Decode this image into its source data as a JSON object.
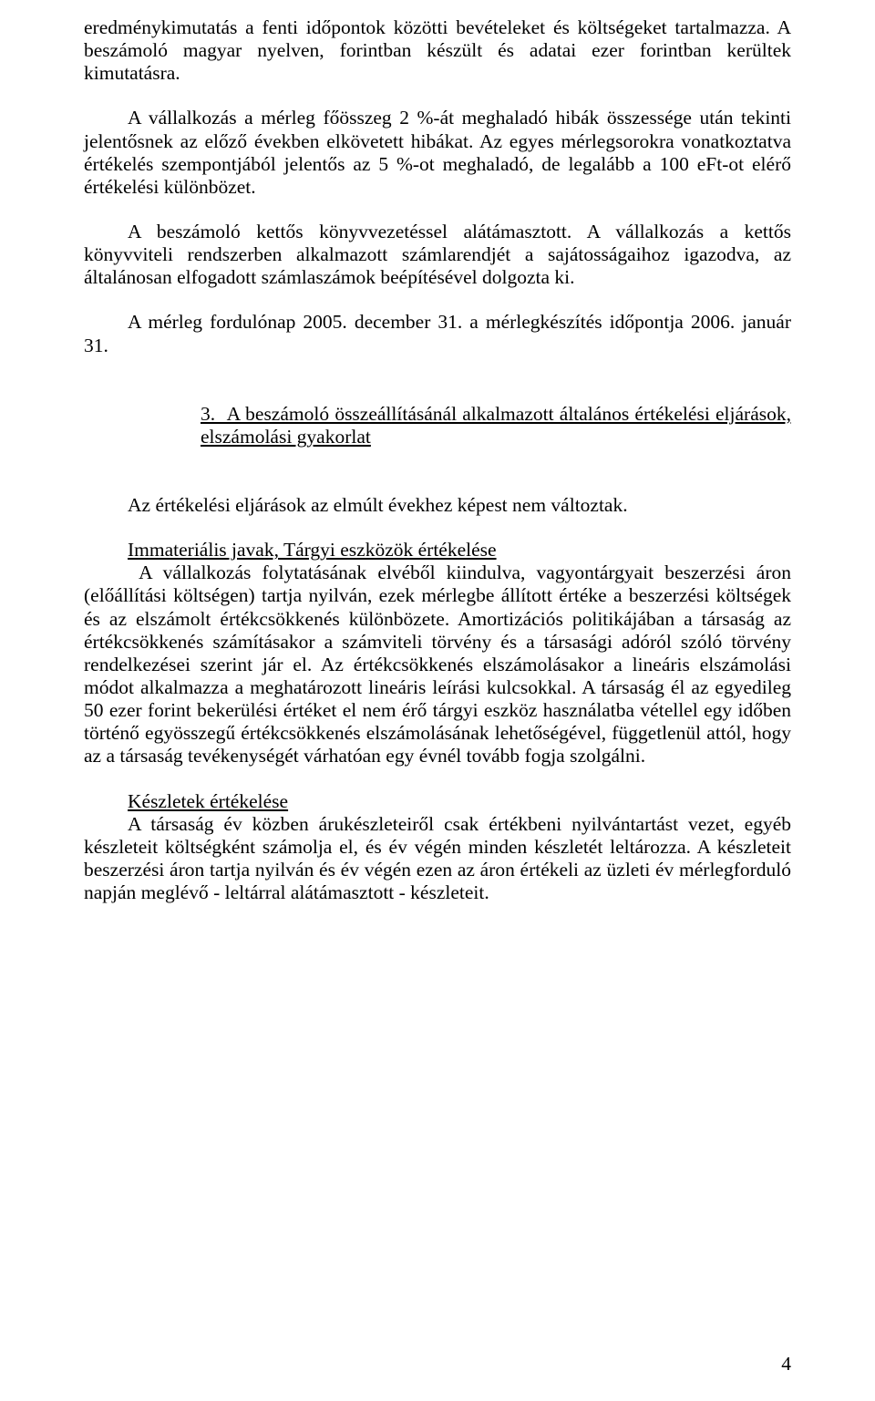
{
  "para_top_fragment": "eredménykimutatás a fenti időpontok közötti bevételeket és költségeket tartalmazza. A beszámoló magyar nyelven, forintban készült és adatai ezer forintban kerültek kimutatásra.",
  "para_threshold": "A vállalkozás a mérleg főösszeg 2 %-át meghaladó hibák összessége után tekinti jelentősnek az előző években elkövetett hibákat. Az egyes mérlegsorokra vonatkoztatva értékelés szempontjából jelentős az 5 %-ot meghaladó, de legalább a 100 eFt-ot elérő értékelési különbözet.",
  "para_bookkeeping": "A beszámoló kettős könyvvezetéssel alátámasztott. A vállalkozás a kettős könyvviteli rendszerben alkalmazott számlarendjét a sajátosságaihoz igazodva, az általánosan elfogadott számlaszámok beépítésével dolgozta ki.",
  "para_dates": "A mérleg fordulónap 2005. december 31. a mérlegkészítés időpontja 2006. január 31.",
  "section3_heading": "3.  A beszámoló összeállításánál alkalmazott általános értékelési eljárások, elszámolási gyakorlat",
  "para_unchanged": "Az értékelési eljárások az elmúlt évekhez képest nem változtak.",
  "sub_intangible_heading": "Immateriális javak, Tárgyi eszközök értékelése",
  "para_intangible_body": " A vállalkozás folytatásának elvéből kiindulva, vagyontárgyait beszerzési áron (előállítási költségen) tartja nyilván, ezek mérlegbe állított értéke a beszerzési költségek és az elszámolt értékcsökkenés különbözete. Amortizációs politikájában a társaság az értékcsökkenés számításakor a számviteli törvény és a társasági adóról szóló törvény rendelkezései szerint jár el. Az értékcsökkenés elszámolásakor a lineáris elszámolási módot alkalmazza a meghatározott lineáris leírási kulcsokkal. A társaság él az egyedileg 50 ezer forint bekerülési értéket el nem érő tárgyi eszköz használatba vétellel egy időben történő egyösszegű értékcsökkenés elszámolásának lehetőségével, függetlenül attól, hogy az a társaság tevékenységét várhatóan egy évnél tovább fogja szolgálni.",
  "sub_inventory_heading": "Készletek értékelése",
  "para_inventory_body": "A társaság év közben árukészleteiről csak értékbeni nyilvántartást vezet, egyéb készleteit költségként számolja el, és év végén minden készletét leltározza. A készleteit beszerzési áron tartja nyilván és év végén ezen az áron értékeli az üzleti év mérlegforduló napján meglévő - leltárral alátámasztott - készleteit.",
  "page_number": "4"
}
